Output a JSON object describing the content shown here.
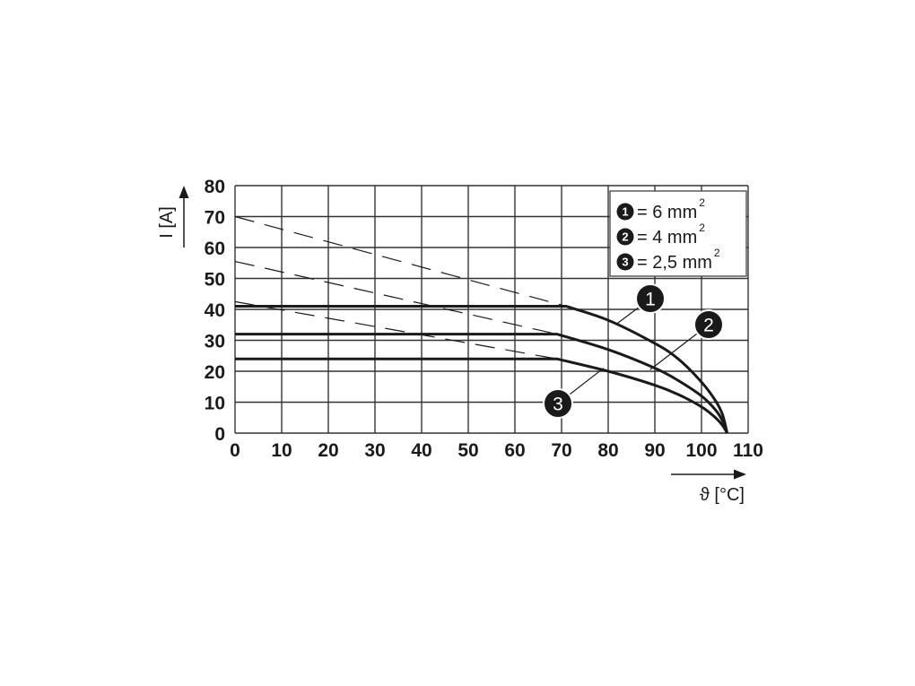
{
  "chart_data": {
    "type": "line",
    "title": "",
    "xlabel": "ϑ [°C]",
    "ylabel": "I [A]",
    "xlim": [
      0,
      110
    ],
    "ylim": [
      0,
      80
    ],
    "xticks": [
      "0",
      "10",
      "20",
      "30",
      "40",
      "50",
      "60",
      "70",
      "80",
      "90",
      "100",
      "110"
    ],
    "yticks": [
      "0",
      "10",
      "20",
      "30",
      "40",
      "50",
      "60",
      "70",
      "80"
    ],
    "grid": true,
    "legend_position": "top-right",
    "legend": [
      {
        "marker": "1",
        "text": "= 6 mm",
        "sup": "2"
      },
      {
        "marker": "2",
        "text": "= 4 mm",
        "sup": "2"
      },
      {
        "marker": "3",
        "text": "= 2,5 mm",
        "sup": "2"
      }
    ],
    "series": [
      {
        "marker": "1",
        "style": "solid",
        "points": [
          [
            0,
            41
          ],
          [
            71,
            41
          ],
          [
            80,
            36.5
          ],
          [
            90,
            29
          ],
          [
            95,
            24
          ],
          [
            100,
            16.5
          ],
          [
            103,
            10.5
          ],
          [
            104.5,
            6
          ],
          [
            105.5,
            0
          ]
        ]
      },
      {
        "marker": "2",
        "style": "solid",
        "points": [
          [
            0,
            32
          ],
          [
            69,
            32
          ],
          [
            80,
            27
          ],
          [
            90,
            21
          ],
          [
            95,
            17
          ],
          [
            100,
            12
          ],
          [
            103,
            7.5
          ],
          [
            104.5,
            4
          ],
          [
            105.5,
            0
          ]
        ]
      },
      {
        "marker": "3",
        "style": "solid",
        "points": [
          [
            0,
            24
          ],
          [
            69,
            24
          ],
          [
            80,
            20
          ],
          [
            90,
            15.5
          ],
          [
            95,
            12.5
          ],
          [
            100,
            8.5
          ],
          [
            103,
            5
          ],
          [
            104.5,
            2.5
          ],
          [
            105.5,
            0
          ]
        ]
      }
    ],
    "dashed_lines": [
      {
        "points": [
          [
            0,
            70
          ],
          [
            71,
            41
          ]
        ]
      },
      {
        "points": [
          [
            0,
            55.5
          ],
          [
            69,
            32
          ]
        ]
      },
      {
        "points": [
          [
            0,
            42.5
          ],
          [
            69,
            24
          ]
        ]
      }
    ],
    "callouts": [
      {
        "marker": "1",
        "at": [
          82,
          35.5
        ]
      },
      {
        "marker": "2",
        "at": [
          89,
          20.5
        ]
      },
      {
        "marker": "3",
        "at": [
          79,
          21
        ]
      }
    ],
    "colors": {
      "ink": "#1a1a1a",
      "grid": "#333333"
    }
  }
}
